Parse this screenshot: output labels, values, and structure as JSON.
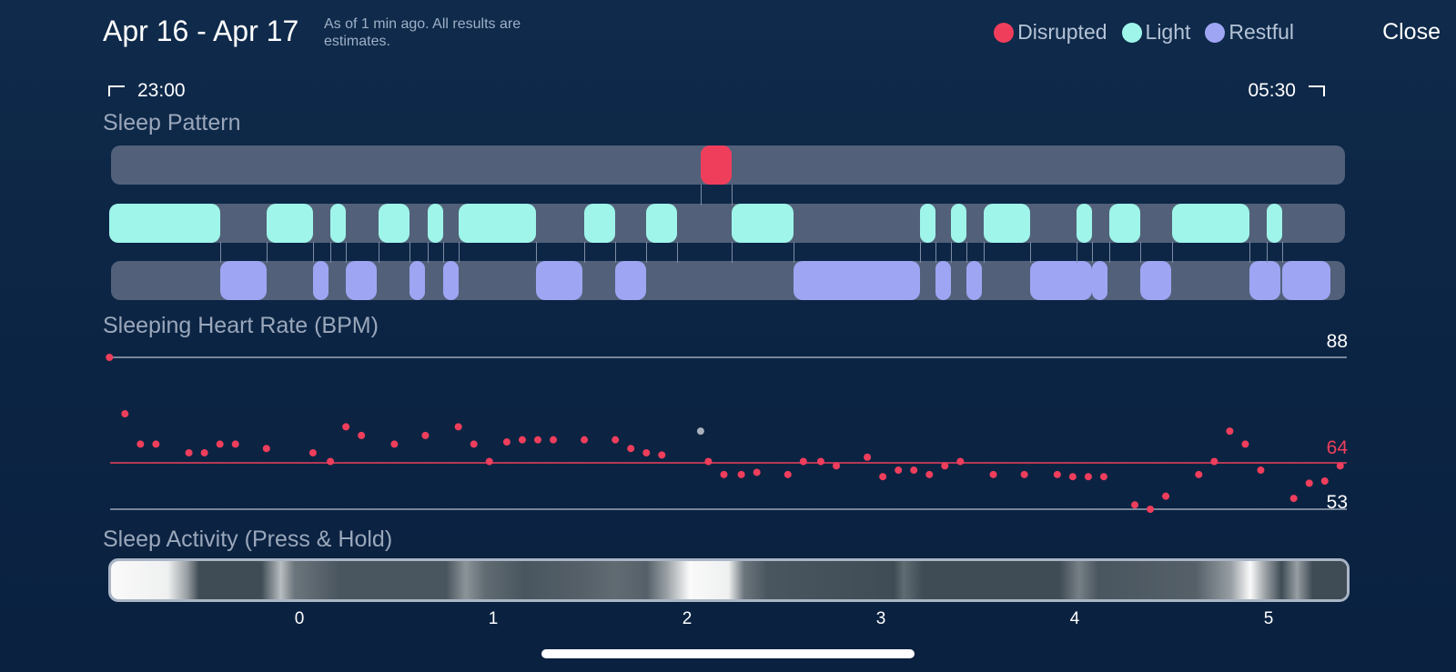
{
  "header": {
    "title": "Apr 16 - Apr 17",
    "subtitle": "As of 1 min ago. All results are estimates.",
    "close_label": "Close"
  },
  "legend": [
    {
      "label": "Disrupted",
      "color": "#ef3e5c"
    },
    {
      "label": "Light",
      "color": "#9ff5ea"
    },
    {
      "label": "Restful",
      "color": "#9ea5f3"
    }
  ],
  "time_range": {
    "start": "23:00",
    "end": "05:30"
  },
  "sleep_pattern": {
    "label": "Sleep Pattern",
    "disrupted": [
      [
        2.07,
        2.23
      ]
    ],
    "light": [
      [
        -0.98,
        -0.41
      ],
      [
        -0.17,
        0.07
      ],
      [
        0.16,
        0.24
      ],
      [
        0.41,
        0.57
      ],
      [
        0.66,
        0.74
      ],
      [
        0.82,
        1.22
      ],
      [
        1.47,
        1.63
      ],
      [
        1.79,
        1.95
      ],
      [
        2.23,
        2.55
      ],
      [
        3.2,
        3.28
      ],
      [
        3.36,
        3.44
      ],
      [
        3.53,
        3.77
      ],
      [
        4.01,
        4.09
      ],
      [
        4.18,
        4.34
      ],
      [
        4.5,
        4.9
      ],
      [
        4.99,
        5.07
      ]
    ],
    "restful": [
      [
        -0.41,
        -0.17
      ],
      [
        0.07,
        0.15
      ],
      [
        0.24,
        0.4
      ],
      [
        0.57,
        0.65
      ],
      [
        0.74,
        0.82
      ],
      [
        1.22,
        1.46
      ],
      [
        1.63,
        1.79
      ],
      [
        2.55,
        3.2
      ],
      [
        3.28,
        3.36
      ],
      [
        3.44,
        3.52
      ],
      [
        3.77,
        4.09
      ],
      [
        4.09,
        4.17
      ],
      [
        4.34,
        4.5
      ],
      [
        4.9,
        5.06
      ],
      [
        5.07,
        5.32
      ]
    ]
  },
  "heart_rate": {
    "label": "Sleeping Heart Rate (BPM)",
    "max": "88",
    "avg": "64",
    "min": "53",
    "accent": "#ef3e5c"
  },
  "chart_data": {
    "type": "scatter",
    "title": "Sleeping Heart Rate (BPM)",
    "ylim": [
      53,
      88
    ],
    "reference_lines": [
      88,
      64,
      53
    ],
    "series": [
      {
        "points": [
          [
            -0.98,
            88
          ],
          [
            -0.9,
            75
          ],
          [
            -0.82,
            68
          ],
          [
            -0.74,
            68
          ],
          [
            -0.57,
            66
          ],
          [
            -0.49,
            66
          ],
          [
            -0.41,
            68
          ],
          [
            -0.33,
            68
          ],
          [
            -0.17,
            67
          ],
          [
            0.07,
            66
          ],
          [
            0.16,
            64
          ],
          [
            0.24,
            72
          ],
          [
            0.32,
            70
          ],
          [
            0.49,
            68
          ],
          [
            0.65,
            70
          ],
          [
            0.82,
            72
          ],
          [
            0.9,
            68
          ],
          [
            0.98,
            64
          ],
          [
            1.07,
            68.5
          ],
          [
            1.15,
            69
          ],
          [
            1.23,
            69
          ],
          [
            1.31,
            69
          ],
          [
            1.47,
            69
          ],
          [
            1.63,
            69
          ],
          [
            1.71,
            67
          ],
          [
            1.79,
            66
          ],
          [
            1.87,
            65.5
          ],
          [
            2.11,
            64
          ],
          [
            2.19,
            61
          ],
          [
            2.28,
            61
          ],
          [
            2.36,
            61.5
          ],
          [
            2.52,
            61
          ],
          [
            2.6,
            64
          ],
          [
            2.69,
            64
          ],
          [
            2.77,
            63
          ],
          [
            2.93,
            65
          ],
          [
            3.01,
            60.5
          ],
          [
            3.09,
            62
          ],
          [
            3.17,
            62
          ],
          [
            3.25,
            61
          ],
          [
            3.33,
            63
          ],
          [
            3.41,
            64
          ],
          [
            3.58,
            61
          ],
          [
            3.74,
            61
          ],
          [
            3.91,
            61
          ],
          [
            3.99,
            60.5
          ],
          [
            4.07,
            60.5
          ],
          [
            4.15,
            60.5
          ],
          [
            4.31,
            54
          ],
          [
            4.39,
            53
          ],
          [
            4.47,
            56
          ],
          [
            4.64,
            61
          ],
          [
            4.72,
            64
          ],
          [
            4.8,
            71
          ],
          [
            4.88,
            68
          ],
          [
            4.96,
            62
          ],
          [
            5.13,
            55.5
          ],
          [
            5.21,
            59
          ],
          [
            5.29,
            59.5
          ],
          [
            5.37,
            63
          ]
        ],
        "color": "#ef3e5c"
      }
    ],
    "highlight": {
      "x": 2.07,
      "y": 71,
      "color": "#a8b0bb"
    }
  },
  "sleep_activity": {
    "label": "Sleep Activity (Press & Hold)",
    "axis_ticks": [
      "0",
      "1",
      "2",
      "3",
      "4",
      "5"
    ],
    "intensity": [
      [
        -0.98,
        1.0
      ],
      [
        -0.68,
        0.95
      ],
      [
        -0.58,
        0.55
      ],
      [
        -0.52,
        0.15
      ],
      [
        -0.2,
        0.15
      ],
      [
        -0.1,
        0.7
      ],
      [
        -0.03,
        0.35
      ],
      [
        0.2,
        0.2
      ],
      [
        0.75,
        0.2
      ],
      [
        0.85,
        0.5
      ],
      [
        0.95,
        0.3
      ],
      [
        1.15,
        0.2
      ],
      [
        1.45,
        0.25
      ],
      [
        1.62,
        0.3
      ],
      [
        1.78,
        0.25
      ],
      [
        1.88,
        0.55
      ],
      [
        2.0,
        1.0
      ],
      [
        2.2,
        0.95
      ],
      [
        2.28,
        0.35
      ],
      [
        2.4,
        0.2
      ],
      [
        3.05,
        0.15
      ],
      [
        3.1,
        0.3
      ],
      [
        3.2,
        0.15
      ],
      [
        3.9,
        0.15
      ],
      [
        4.0,
        0.4
      ],
      [
        4.1,
        0.2
      ],
      [
        4.6,
        0.25
      ],
      [
        4.78,
        0.55
      ],
      [
        4.88,
        1.0
      ],
      [
        4.95,
        0.6
      ],
      [
        5.04,
        0.15
      ],
      [
        5.12,
        0.55
      ],
      [
        5.2,
        0.15
      ],
      [
        5.38,
        0.15
      ]
    ]
  }
}
